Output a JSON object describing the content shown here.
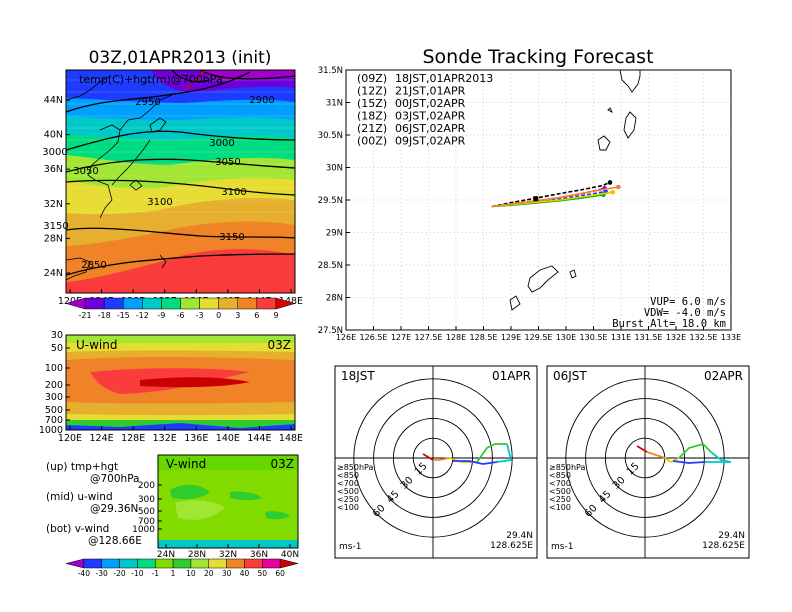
{
  "chart_data": [
    {
      "type": "heatmap",
      "title": "03Z,01APR2013 (init)",
      "annotation": "temp(C)+hgt(m)@700hPa",
      "x_ticks": [
        "120E",
        "124E",
        "128E",
        "132E",
        "136E",
        "140E",
        "144E",
        "148E"
      ],
      "y_ticks": [
        "24N",
        "28N",
        "32N",
        "36N",
        "40N",
        "44N"
      ],
      "contour_labels": [
        "2950",
        "2900",
        "3000",
        "3000",
        "3050",
        "3050",
        "3100",
        "3100",
        "3150",
        "3150",
        "2850"
      ],
      "colorbar_labels": [
        "-21",
        "-18",
        "-15",
        "-12",
        "-9",
        "-6",
        "-3",
        "0",
        "3",
        "6",
        "9"
      ],
      "colorbar_colors": [
        "#a000c8",
        "#6e00dc",
        "#1e3cff",
        "#00a0ff",
        "#00c8c8",
        "#00dc82",
        "#a0e632",
        "#e6dc32",
        "#e6af2d",
        "#f08228",
        "#fa3c3c",
        "#dc0000"
      ]
    },
    {
      "type": "heatmap",
      "panel_label": "U-wind",
      "time_label": "03Z",
      "x_ticks": [
        "120E",
        "124E",
        "128E",
        "132E",
        "136E",
        "140E",
        "144E",
        "148E"
      ],
      "y_ticks": [
        "30",
        "50",
        "100",
        "200",
        "300",
        "500",
        "700",
        "1000"
      ]
    },
    {
      "type": "heatmap",
      "panel_label": "V-wind",
      "time_label": "03Z",
      "x_ticks": [
        "24N",
        "28N",
        "32N",
        "36N",
        "40N"
      ],
      "y_ticks": [
        "200",
        "300",
        "500",
        "700",
        "1000"
      ],
      "colorbar_labels": [
        "-40",
        "-30",
        "-20",
        "-10",
        "-1",
        "1",
        "10",
        "20",
        "30",
        "40",
        "50",
        "60"
      ],
      "colorbar_colors": [
        "#a000c8",
        "#1e3cff",
        "#00a0ff",
        "#00c8c8",
        "#00dc82",
        "#82dc00",
        "#2ecc2e",
        "#a0e632",
        "#e6dc32",
        "#f08228",
        "#fa3c3c",
        "#e600a0",
        "#c80000"
      ]
    },
    {
      "type": "line",
      "title": "Sonde Tracking Forecast",
      "x_ticks": [
        "126E",
        "126.5E",
        "127E",
        "127.5E",
        "128E",
        "128.5E",
        "129E",
        "129.5E",
        "130E",
        "130.5E",
        "131E",
        "131.5E",
        "132E",
        "132.5E",
        "133E"
      ],
      "y_ticks": [
        "27.5N",
        "28N",
        "28.5N",
        "29N",
        "29.5N",
        "30N",
        "30.5N",
        "31N",
        "31.5N"
      ],
      "xlim": [
        126,
        133
      ],
      "ylim": [
        27.5,
        31.5
      ],
      "legend": [
        {
          "code": "(09Z)",
          "label": "18JST,01APR2013",
          "color": "#000000"
        },
        {
          "code": "(12Z)",
          "label": "21JST,01APR",
          "color": "#a000c8"
        },
        {
          "code": "(15Z)",
          "label": "00JST,02APR",
          "color": "#1e3cff"
        },
        {
          "code": "(18Z)",
          "label": "03JST,02APR",
          "color": "#00b400"
        },
        {
          "code": "(21Z)",
          "label": "06JST,02APR",
          "color": "#e6c800"
        },
        {
          "code": "(00Z)",
          "label": "09JST,02APR",
          "color": "#f08228"
        }
      ],
      "series": [
        {
          "color": "#000000",
          "dashed": true,
          "x": [
            128.65,
            129.0,
            129.4,
            129.9,
            130.3,
            130.65,
            130.8
          ],
          "y": [
            29.4,
            29.46,
            29.52,
            29.6,
            29.66,
            29.72,
            29.77
          ]
        },
        {
          "color": "#a000c8",
          "dashed": true,
          "x": [
            128.65,
            129.0,
            129.4,
            129.9,
            130.3,
            130.7
          ],
          "y": [
            29.4,
            29.44,
            29.48,
            29.54,
            29.6,
            29.68
          ]
        },
        {
          "color": "#1e3cff",
          "dashed": true,
          "x": [
            128.65,
            129.0,
            129.4,
            129.9,
            130.3,
            130.72
          ],
          "y": [
            29.4,
            29.43,
            29.47,
            29.52,
            29.57,
            29.63
          ]
        },
        {
          "color": "#00b400",
          "dashed": false,
          "x": [
            128.65,
            129.0,
            129.4,
            129.9,
            130.3,
            130.68
          ],
          "y": [
            29.4,
            29.42,
            29.45,
            29.49,
            29.53,
            29.58
          ]
        },
        {
          "color": "#e6c800",
          "dashed": false,
          "x": [
            128.65,
            129.0,
            129.4,
            129.9,
            130.4,
            130.85
          ],
          "y": [
            29.4,
            29.43,
            29.46,
            29.5,
            29.56,
            29.62
          ]
        },
        {
          "color": "#f08228",
          "dashed": false,
          "x": [
            128.65,
            129.0,
            129.4,
            129.9,
            130.4,
            130.95
          ],
          "y": [
            29.4,
            29.44,
            29.48,
            29.54,
            29.62,
            29.7
          ]
        }
      ],
      "launch_point": {
        "x": 129.45,
        "y": 29.52
      },
      "info": [
        "VUP=  6.0 m/s",
        "VDW= -4.0 m/s",
        "Burst Alt= 18.0 km"
      ]
    }
  ],
  "hodographs": [
    {
      "title_left": "18JST",
      "title_right": "01APR",
      "ring_labels": [
        "15",
        "30",
        "45",
        "60"
      ],
      "legend_levels": [
        {
          "label": "≥850hPa",
          "color": "#dc0000"
        },
        {
          "label": "<850",
          "color": "#f08228"
        },
        {
          "label": "<700",
          "color": "#e6c800"
        },
        {
          "label": "<500",
          "color": "#2ecc2e"
        },
        {
          "label": "<250",
          "color": "#00c8c8"
        },
        {
          "label": "<100",
          "color": "#1e3cff"
        }
      ],
      "unit": "ms-1",
      "location": [
        "29.4N",
        "128.625E"
      ]
    },
    {
      "title_left": "06JST",
      "title_right": "02APR",
      "ring_labels": [
        "15",
        "30",
        "45",
        "60"
      ],
      "legend_levels": [
        {
          "label": "≥850hPa",
          "color": "#dc0000"
        },
        {
          "label": "<850",
          "color": "#f08228"
        },
        {
          "label": "<700",
          "color": "#e6c800"
        },
        {
          "label": "<500",
          "color": "#2ecc2e"
        },
        {
          "label": "<250",
          "color": "#00c8c8"
        },
        {
          "label": "<100",
          "color": "#1e3cff"
        }
      ],
      "unit": "ms-1",
      "location": [
        "29.4N",
        "128.625E"
      ]
    }
  ],
  "side_notes": [
    {
      "line1": "(up) tmp+hgt",
      "line2": "@700hPa"
    },
    {
      "line1": "(mid) u-wind",
      "line2": "@29.36N"
    },
    {
      "line1": "(bot) v-wind",
      "line2": "@128.66E"
    }
  ]
}
